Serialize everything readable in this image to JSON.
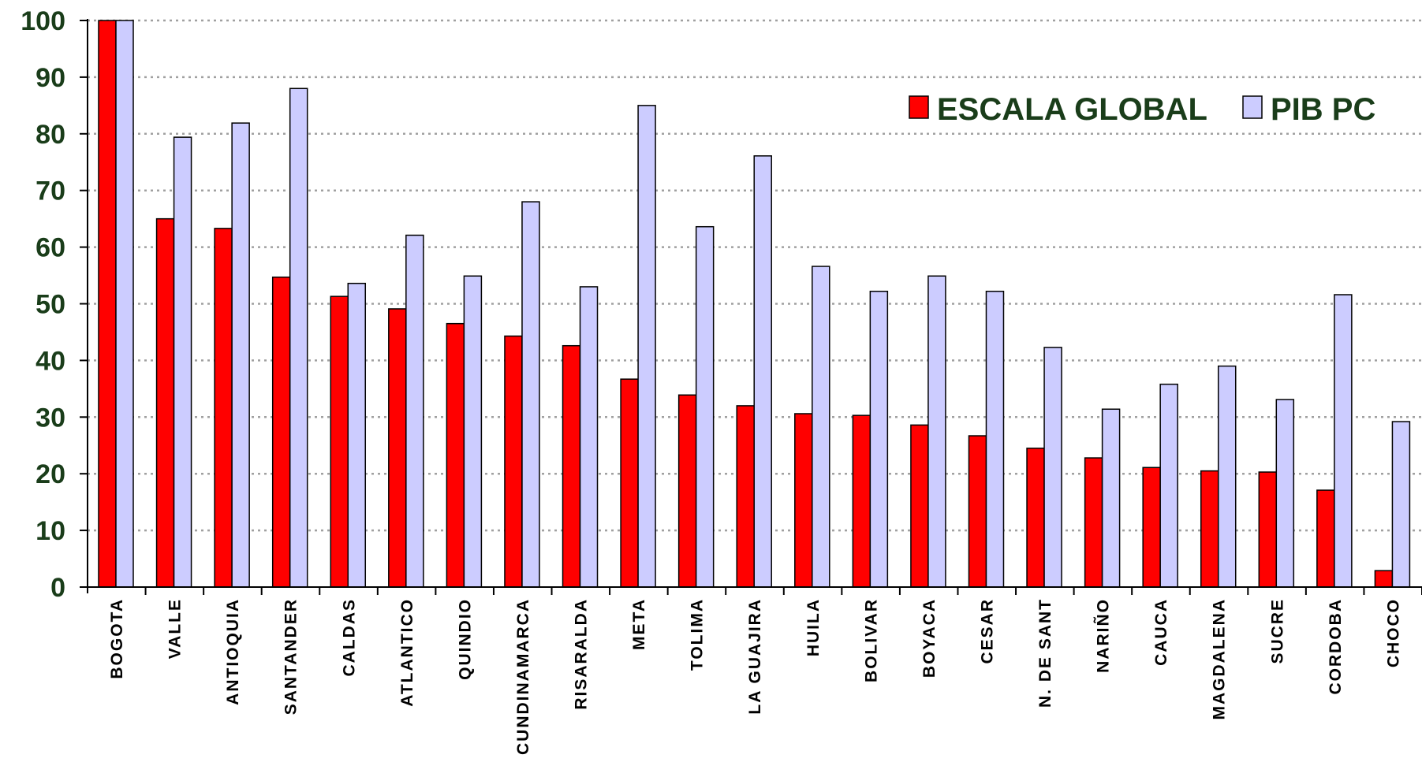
{
  "chart_data": {
    "type": "bar",
    "title": "",
    "xlabel": "",
    "ylabel": "",
    "ylim": [
      0,
      100
    ],
    "yticks": [
      0,
      10,
      20,
      30,
      40,
      50,
      60,
      70,
      80,
      90,
      100
    ],
    "grid": true,
    "legend_position": "top-right",
    "categories": [
      "BOGOTA",
      "VALLE",
      "ANTIOQUIA",
      "SANTANDER",
      "CALDAS",
      "ATLANTICO",
      "QUINDIO",
      "CUNDINAMARCA",
      "RISARALDA",
      "META",
      "TOLIMA",
      "LA GUAJIRA",
      "HUILA",
      "BOLIVAR",
      "BOYACA",
      "CESAR",
      "N. DE SANT",
      "NARIÑO",
      "CAUCA",
      "MAGDALENA",
      "SUCRE",
      "CORDOBA",
      "CHOCO"
    ],
    "series": [
      {
        "name": "ESCALA GLOBAL",
        "color": "#ff0000",
        "values": [
          100,
          65,
          63.3,
          54.7,
          51.3,
          49.1,
          46.5,
          44.3,
          42.6,
          36.7,
          33.9,
          32,
          30.6,
          30.3,
          28.6,
          26.7,
          24.5,
          22.8,
          21.1,
          20.5,
          20.3,
          17.1,
          2.9
        ]
      },
      {
        "name": "PIB PC",
        "color": "#ccccff",
        "values": [
          100,
          79.4,
          81.9,
          88,
          53.6,
          62.1,
          54.9,
          68,
          53,
          85,
          63.6,
          76.1,
          56.6,
          52.2,
          54.9,
          52.2,
          42.3,
          31.4,
          35.8,
          39,
          33.1,
          51.6,
          29.2
        ]
      }
    ]
  }
}
